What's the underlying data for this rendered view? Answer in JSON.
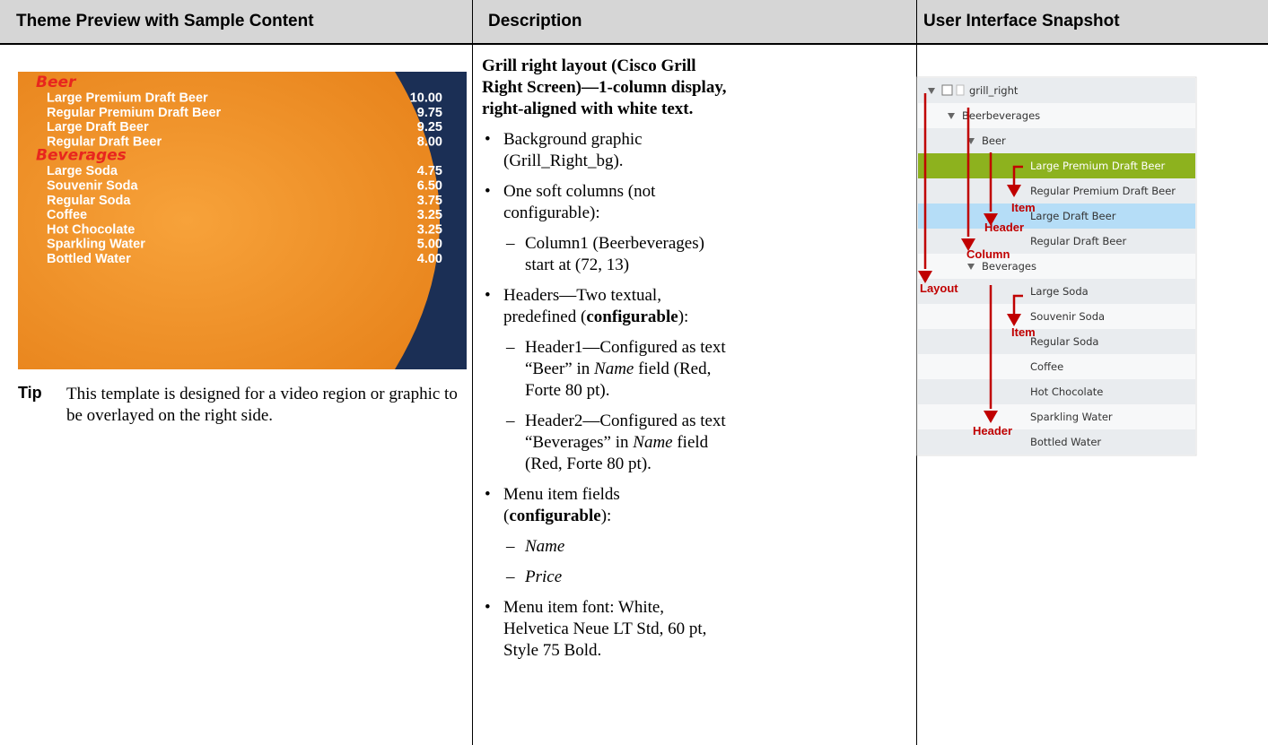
{
  "table": {
    "headers": [
      "Theme Preview with Sample Content",
      "Description",
      "User Interface Snapshot"
    ],
    "preview": {
      "groups": [
        {
          "header": "Beer",
          "items": [
            {
              "name": "Large Premium Draft Beer",
              "price": "10.00"
            },
            {
              "name": "Regular Premium Draft Beer",
              "price": "9.75"
            },
            {
              "name": "Large Draft Beer",
              "price": "9.25"
            },
            {
              "name": "Regular Draft Beer",
              "price": "8.00"
            }
          ]
        },
        {
          "header": "Beverages",
          "items": [
            {
              "name": "Large Soda",
              "price": "4.75"
            },
            {
              "name": "Souvenir Soda",
              "price": "6.50"
            },
            {
              "name": "Regular Soda",
              "price": "3.75"
            },
            {
              "name": "Coffee",
              "price": "3.25"
            },
            {
              "name": "Hot Chocolate",
              "price": "3.25"
            },
            {
              "name": "Sparkling Water",
              "price": "5.00"
            },
            {
              "name": "Bottled Water",
              "price": "4.00"
            }
          ]
        }
      ]
    },
    "tip": {
      "label": "Tip",
      "text": "This template is designed for a video region or graphic to be overlayed on the right side."
    },
    "description": {
      "title": "Grill right layout (Cisco Grill Right Screen)—1-column display, right-aligned with white text.",
      "items": [
        {
          "parts": [
            "Background graphic (Grill_Right_bg)."
          ]
        },
        {
          "parts": [
            "One soft columns (not configurable):"
          ],
          "sub": [
            [
              "Column1 (Beerbeverages) start at (72, 13)"
            ]
          ]
        },
        {
          "parts": [
            "Headers—Two textual, predefined (",
            "configurable",
            "):"
          ],
          "sub": [
            [
              "Header1—Configured as text “Beer” in ",
              "Name",
              " field (Red, Forte 80 pt)."
            ],
            [
              "Header2—Configured as text “Beverages” in ",
              "Name",
              " field (Red, Forte 80 pt)."
            ]
          ]
        },
        {
          "parts": [
            "Menu item fields (",
            "configurable",
            "):"
          ],
          "sub": [
            [
              "Name"
            ],
            [
              "Price"
            ]
          ]
        },
        {
          "parts": [
            "Menu item font: White, Helvetica Neue LT Std, 60 pt, Style 75 Bold."
          ]
        }
      ]
    },
    "snapshot": {
      "tree": {
        "label": "grill_right",
        "children": [
          {
            "label": "Beerbeverages",
            "children": [
              {
                "label": "Beer",
                "children": [
                  {
                    "label": "Large Premium Draft Beer",
                    "highlight": "#8db21e"
                  },
                  {
                    "label": "Regular Premium Draft Beer"
                  },
                  {
                    "label": "Large Draft Beer",
                    "highlight": "#b5ddf7"
                  },
                  {
                    "label": "Regular Draft Beer"
                  }
                ]
              },
              {
                "label": "Beverages",
                "children": [
                  {
                    "label": "Large Soda"
                  },
                  {
                    "label": "Souvenir Soda"
                  },
                  {
                    "label": "Regular Soda"
                  },
                  {
                    "label": "Coffee"
                  },
                  {
                    "label": "Hot Chocolate"
                  },
                  {
                    "label": "Sparkling Water"
                  },
                  {
                    "label": "Bottled Water"
                  }
                ]
              }
            ]
          }
        ]
      },
      "annotations": [
        "Item",
        "Header",
        "Column",
        "Layout",
        "Item",
        "Header"
      ]
    }
  }
}
